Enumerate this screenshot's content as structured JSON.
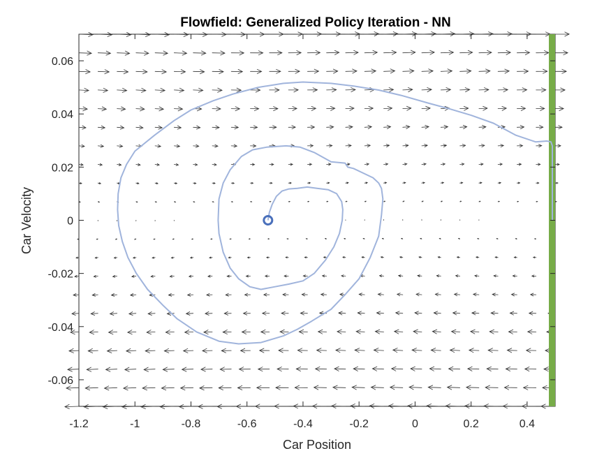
{
  "chart_data": {
    "type": "quiver",
    "title": "Flowfield: Generalized Policy Iteration - NN",
    "xlabel": "Car Position",
    "ylabel": "Car Velocity",
    "xlim": [
      -1.2,
      0.5
    ],
    "ylim": [
      -0.07,
      0.07
    ],
    "xticks": [
      -1.2,
      -1,
      -0.8,
      -0.6,
      -0.4,
      -0.2,
      0,
      0.2,
      0.4
    ],
    "xtick_labels": [
      "-1.2",
      "-1",
      "-0.8",
      "-0.6",
      "-0.4",
      "-0.2",
      "0",
      "0.2",
      "0.4"
    ],
    "yticks": [
      -0.06,
      -0.04,
      -0.02,
      0,
      0.02,
      0.04,
      0.06
    ],
    "ytick_labels": [
      "-0.06",
      "-0.04",
      "-0.02",
      "0",
      "0.02",
      "0.04",
      "0.06"
    ],
    "grid": false,
    "quiver": {
      "x_range": [
        -1.2,
        0.5
      ],
      "y_range": [
        -0.07,
        0.07
      ],
      "nx": 26,
      "ny": 21,
      "color": "#333333"
    },
    "goal": {
      "x": 0.5,
      "color": "#77ac48"
    },
    "start": {
      "x": -0.525,
      "y": 0.0,
      "color": "#4a70bb"
    },
    "trajectory": {
      "color": "#a0b4dc",
      "points": [
        [
          -0.525,
          0.0
        ],
        [
          -0.52,
          0.003
        ],
        [
          -0.51,
          0.006
        ],
        [
          -0.495,
          0.009
        ],
        [
          -0.475,
          0.011
        ],
        [
          -0.45,
          0.0118
        ],
        [
          -0.42,
          0.012
        ],
        [
          -0.385,
          0.0125
        ],
        [
          -0.35,
          0.012
        ],
        [
          -0.31,
          0.0115
        ],
        [
          -0.28,
          0.01
        ],
        [
          -0.262,
          0.007
        ],
        [
          -0.258,
          0.004
        ],
        [
          -0.26,
          0.0
        ],
        [
          -0.27,
          -0.005
        ],
        [
          -0.29,
          -0.01
        ],
        [
          -0.32,
          -0.015
        ],
        [
          -0.36,
          -0.02
        ],
        [
          -0.4,
          -0.0228
        ],
        [
          -0.45,
          -0.024
        ],
        [
          -0.5,
          -0.025
        ],
        [
          -0.55,
          -0.026
        ],
        [
          -0.59,
          -0.025
        ],
        [
          -0.63,
          -0.022
        ],
        [
          -0.66,
          -0.018
        ],
        [
          -0.685,
          -0.012
        ],
        [
          -0.7,
          -0.005
        ],
        [
          -0.703,
          0.0
        ],
        [
          -0.7,
          0.008
        ],
        [
          -0.685,
          0.014
        ],
        [
          -0.66,
          0.019
        ],
        [
          -0.62,
          0.024
        ],
        [
          -0.58,
          0.0265
        ],
        [
          -0.53,
          0.0275
        ],
        [
          -0.46,
          0.028
        ],
        [
          -0.41,
          0.0275
        ],
        [
          -0.36,
          0.0255
        ],
        [
          -0.3,
          0.022
        ],
        [
          -0.25,
          0.0215
        ],
        [
          -0.24,
          0.02
        ],
        [
          -0.22,
          0.0195
        ],
        [
          -0.19,
          0.018
        ],
        [
          -0.15,
          0.016
        ],
        [
          -0.13,
          0.014
        ],
        [
          -0.12,
          0.012
        ],
        [
          -0.115,
          0.008
        ],
        [
          -0.12,
          0.002
        ],
        [
          -0.13,
          -0.006
        ],
        [
          -0.16,
          -0.014
        ],
        [
          -0.2,
          -0.022
        ],
        [
          -0.25,
          -0.028
        ],
        [
          -0.3,
          -0.0335
        ],
        [
          -0.37,
          -0.038
        ],
        [
          -0.42,
          -0.041
        ],
        [
          -0.47,
          -0.0435
        ],
        [
          -0.55,
          -0.046
        ],
        [
          -0.63,
          -0.0465
        ],
        [
          -0.7,
          -0.0455
        ],
        [
          -0.78,
          -0.042
        ],
        [
          -0.85,
          -0.037
        ],
        [
          -0.9,
          -0.032
        ],
        [
          -0.955,
          -0.026
        ],
        [
          -0.995,
          -0.02
        ],
        [
          -1.025,
          -0.014
        ],
        [
          -1.045,
          -0.008
        ],
        [
          -1.058,
          -0.002
        ],
        [
          -1.062,
          0.004
        ],
        [
          -1.06,
          0.01
        ],
        [
          -1.05,
          0.016
        ],
        [
          -1.03,
          0.021
        ],
        [
          -1.0,
          0.026
        ],
        [
          -0.93,
          0.032
        ],
        [
          -0.86,
          0.0375
        ],
        [
          -0.8,
          0.0415
        ],
        [
          -0.72,
          0.045
        ],
        [
          -0.65,
          0.0475
        ],
        [
          -0.56,
          0.05
        ],
        [
          -0.47,
          0.0515
        ],
        [
          -0.4,
          0.052
        ],
        [
          -0.3,
          0.0515
        ],
        [
          -0.22,
          0.0505
        ],
        [
          -0.13,
          0.049
        ],
        [
          -0.05,
          0.047
        ],
        [
          0.05,
          0.044
        ],
        [
          0.12,
          0.042
        ],
        [
          0.2,
          0.0395
        ],
        [
          0.28,
          0.0365
        ],
        [
          0.36,
          0.032
        ],
        [
          0.43,
          0.0295
        ],
        [
          0.47,
          0.0298
        ],
        [
          0.485,
          0.0295
        ],
        [
          0.493,
          0.028
        ],
        [
          0.497,
          0.02
        ],
        [
          0.5,
          0.0
        ]
      ]
    }
  }
}
